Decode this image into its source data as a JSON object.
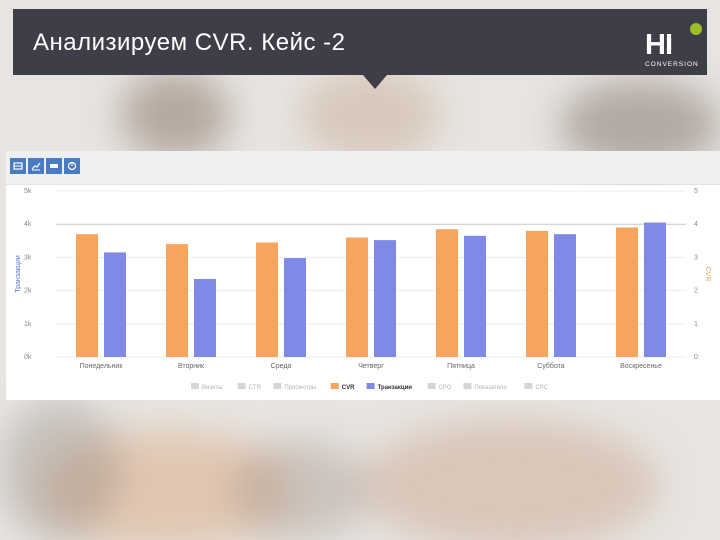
{
  "header": {
    "title": "Анализируем CVR. Кейс -2",
    "logo_text": "HI",
    "logo_sub": "CONVERSION"
  },
  "colors": {
    "header_bg": "#3d3e48",
    "cvr": "#f6a55f",
    "transactions": "#8189e6",
    "toolbar_button": "#4a7bc2",
    "logo_dot": "#9bbf2c"
  },
  "toolbar": {
    "icons": [
      "table-icon",
      "line-chart-icon",
      "bar-chart-icon",
      "pie-chart-icon"
    ]
  },
  "chart_data": {
    "type": "bar",
    "categories": [
      "Понедельник",
      "Вторник",
      "Среда",
      "Четверг",
      "Пятница",
      "Суббота",
      "Воскресенье"
    ],
    "series": [
      {
        "name": "CVR",
        "axis": "right",
        "color": "#f6a55f",
        "values": [
          3.7,
          3.4,
          3.45,
          3.6,
          3.85,
          3.8,
          3.9
        ]
      },
      {
        "name": "Транзакции",
        "axis": "left",
        "color": "#8189e6",
        "values": [
          3150,
          2350,
          2980,
          3520,
          3650,
          3700,
          4050
        ]
      }
    ],
    "y_left": {
      "label": "Транзакции",
      "ticks": [
        "0k",
        "1k",
        "2k",
        "3k",
        "4k",
        "5k"
      ],
      "lim": [
        0,
        5000
      ]
    },
    "y_right": {
      "label": "CVR",
      "ticks": [
        "0",
        "1",
        "2",
        "3",
        "4",
        "5"
      ],
      "lim": [
        0,
        5
      ]
    },
    "legend": {
      "placement": "bottom",
      "items": [
        {
          "label": "Визиты",
          "color": "#d5d5d5",
          "active": false
        },
        {
          "label": "CTR",
          "color": "#d5d5d5",
          "active": false
        },
        {
          "label": "Просмотры",
          "color": "#d5d5d5",
          "active": false
        },
        {
          "label": "CVR",
          "color": "#f6a55f",
          "active": true
        },
        {
          "label": "Транзакции",
          "color": "#8189e6",
          "active": true
        },
        {
          "label": "CPO",
          "color": "#d5d5d5",
          "active": false
        },
        {
          "label": "Показатели",
          "color": "#d5d5d5",
          "active": false
        },
        {
          "label": "CPC",
          "color": "#d5d5d5",
          "active": false
        }
      ]
    },
    "grid": true
  }
}
